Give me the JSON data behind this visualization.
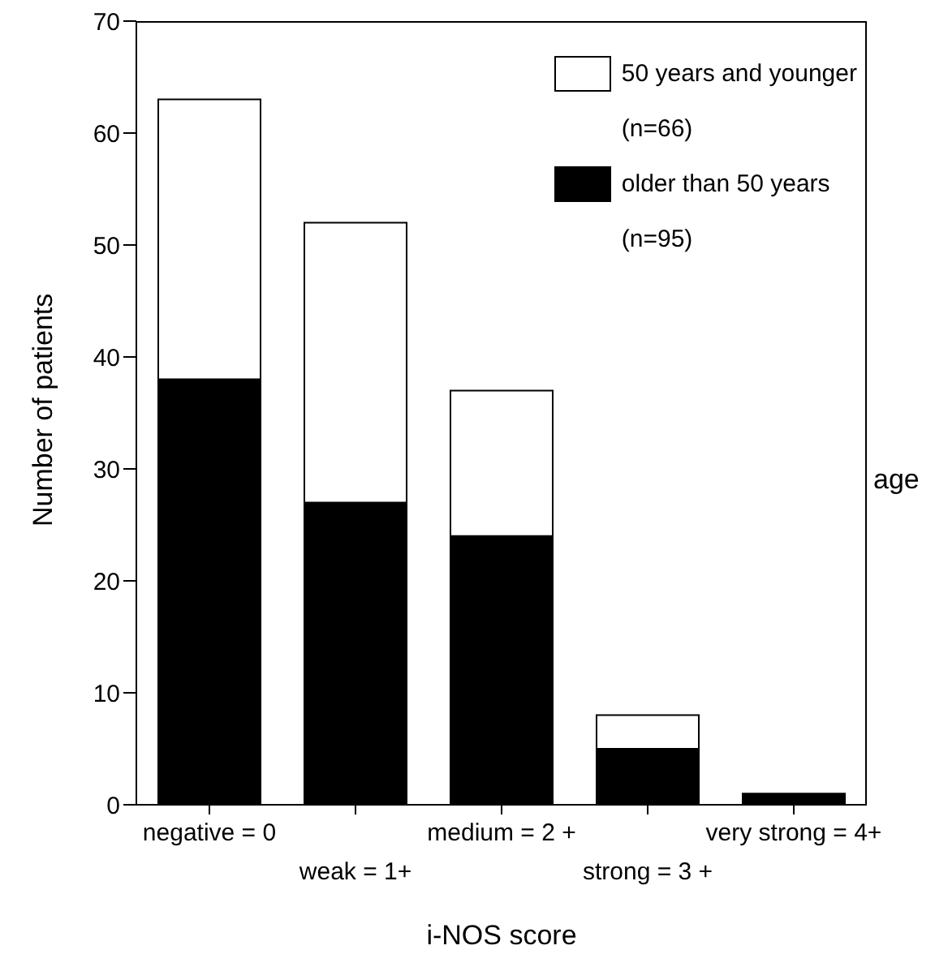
{
  "chart_data": {
    "type": "bar",
    "stacked": true,
    "xlabel": "i-NOS score",
    "ylabel": "Number of patients",
    "categories": [
      "negative = 0",
      "weak = 1+",
      "medium = 2 +",
      "strong = 3 +",
      "very strong = 4+"
    ],
    "series": [
      {
        "name": "older than 50 years",
        "color": "#000000",
        "values": [
          38,
          27,
          24,
          5,
          1
        ]
      },
      {
        "name": "50 years and younger",
        "color": "#ffffff",
        "values": [
          25,
          25,
          13,
          3,
          0
        ]
      }
    ],
    "ylim": [
      0,
      70
    ],
    "yticks": [
      0,
      10,
      20,
      30,
      40,
      50,
      60,
      70
    ],
    "grid": false,
    "legend": "top right",
    "annotations": [
      "age",
      "(n=66)",
      "(n=95)"
    ]
  }
}
